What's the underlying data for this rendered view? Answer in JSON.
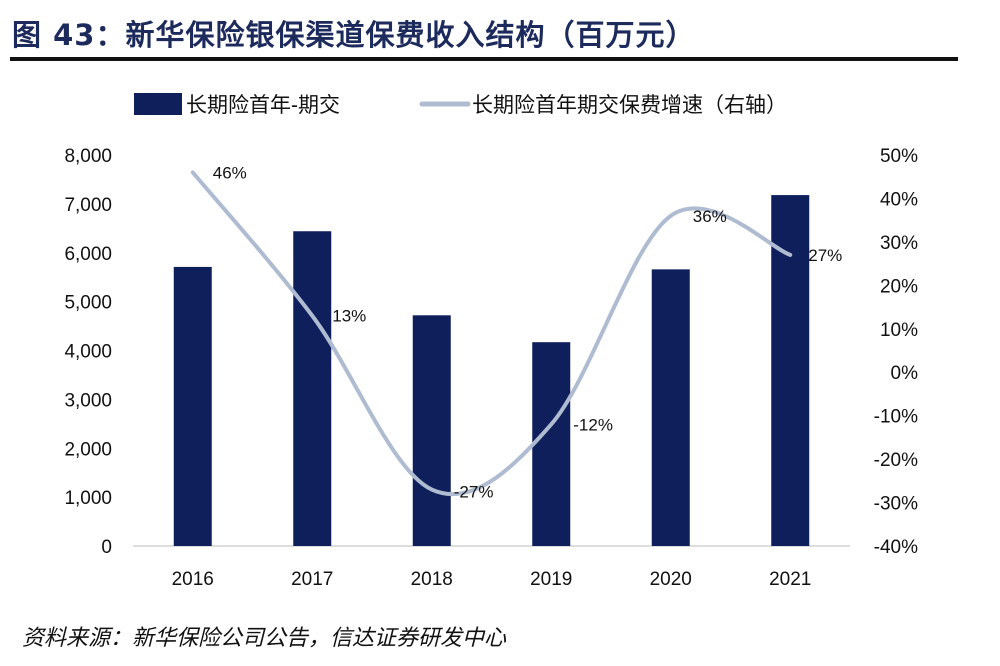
{
  "title": "图 43：新华保险银保渠道保费收入结构（百万元）",
  "source": "资料来源：新华保险公司公告，信达证券研发中心",
  "colors": {
    "bar": "#0e1f5b",
    "line": "#aebbd0"
  },
  "chart_data": {
    "type": "bar+line",
    "categories": [
      "2016",
      "2017",
      "2018",
      "2019",
      "2020",
      "2021"
    ],
    "series": [
      {
        "name": "长期险首年-期交",
        "type": "bar",
        "axis": "left",
        "values": [
          5710,
          6440,
          4720,
          4170,
          5660,
          7180
        ]
      },
      {
        "name": "长期险首年期交保费增速（右轴）",
        "type": "line",
        "axis": "right",
        "values": [
          46,
          13,
          -27,
          -12,
          36,
          27
        ],
        "labels": [
          "46%",
          "13%",
          "-27%",
          "-12%",
          "36%",
          "27%"
        ]
      }
    ],
    "left_axis": {
      "ylim": [
        0,
        8000
      ],
      "ticks": [
        "0",
        "1,000",
        "2,000",
        "3,000",
        "4,000",
        "5,000",
        "6,000",
        "7,000",
        "8,000"
      ]
    },
    "right_axis": {
      "ylim": [
        -40,
        50
      ],
      "ticks": [
        "-40%",
        "-30%",
        "-20%",
        "-10%",
        "0%",
        "10%",
        "20%",
        "30%",
        "40%",
        "50%"
      ]
    },
    "legend_position": "top",
    "grid": false
  }
}
